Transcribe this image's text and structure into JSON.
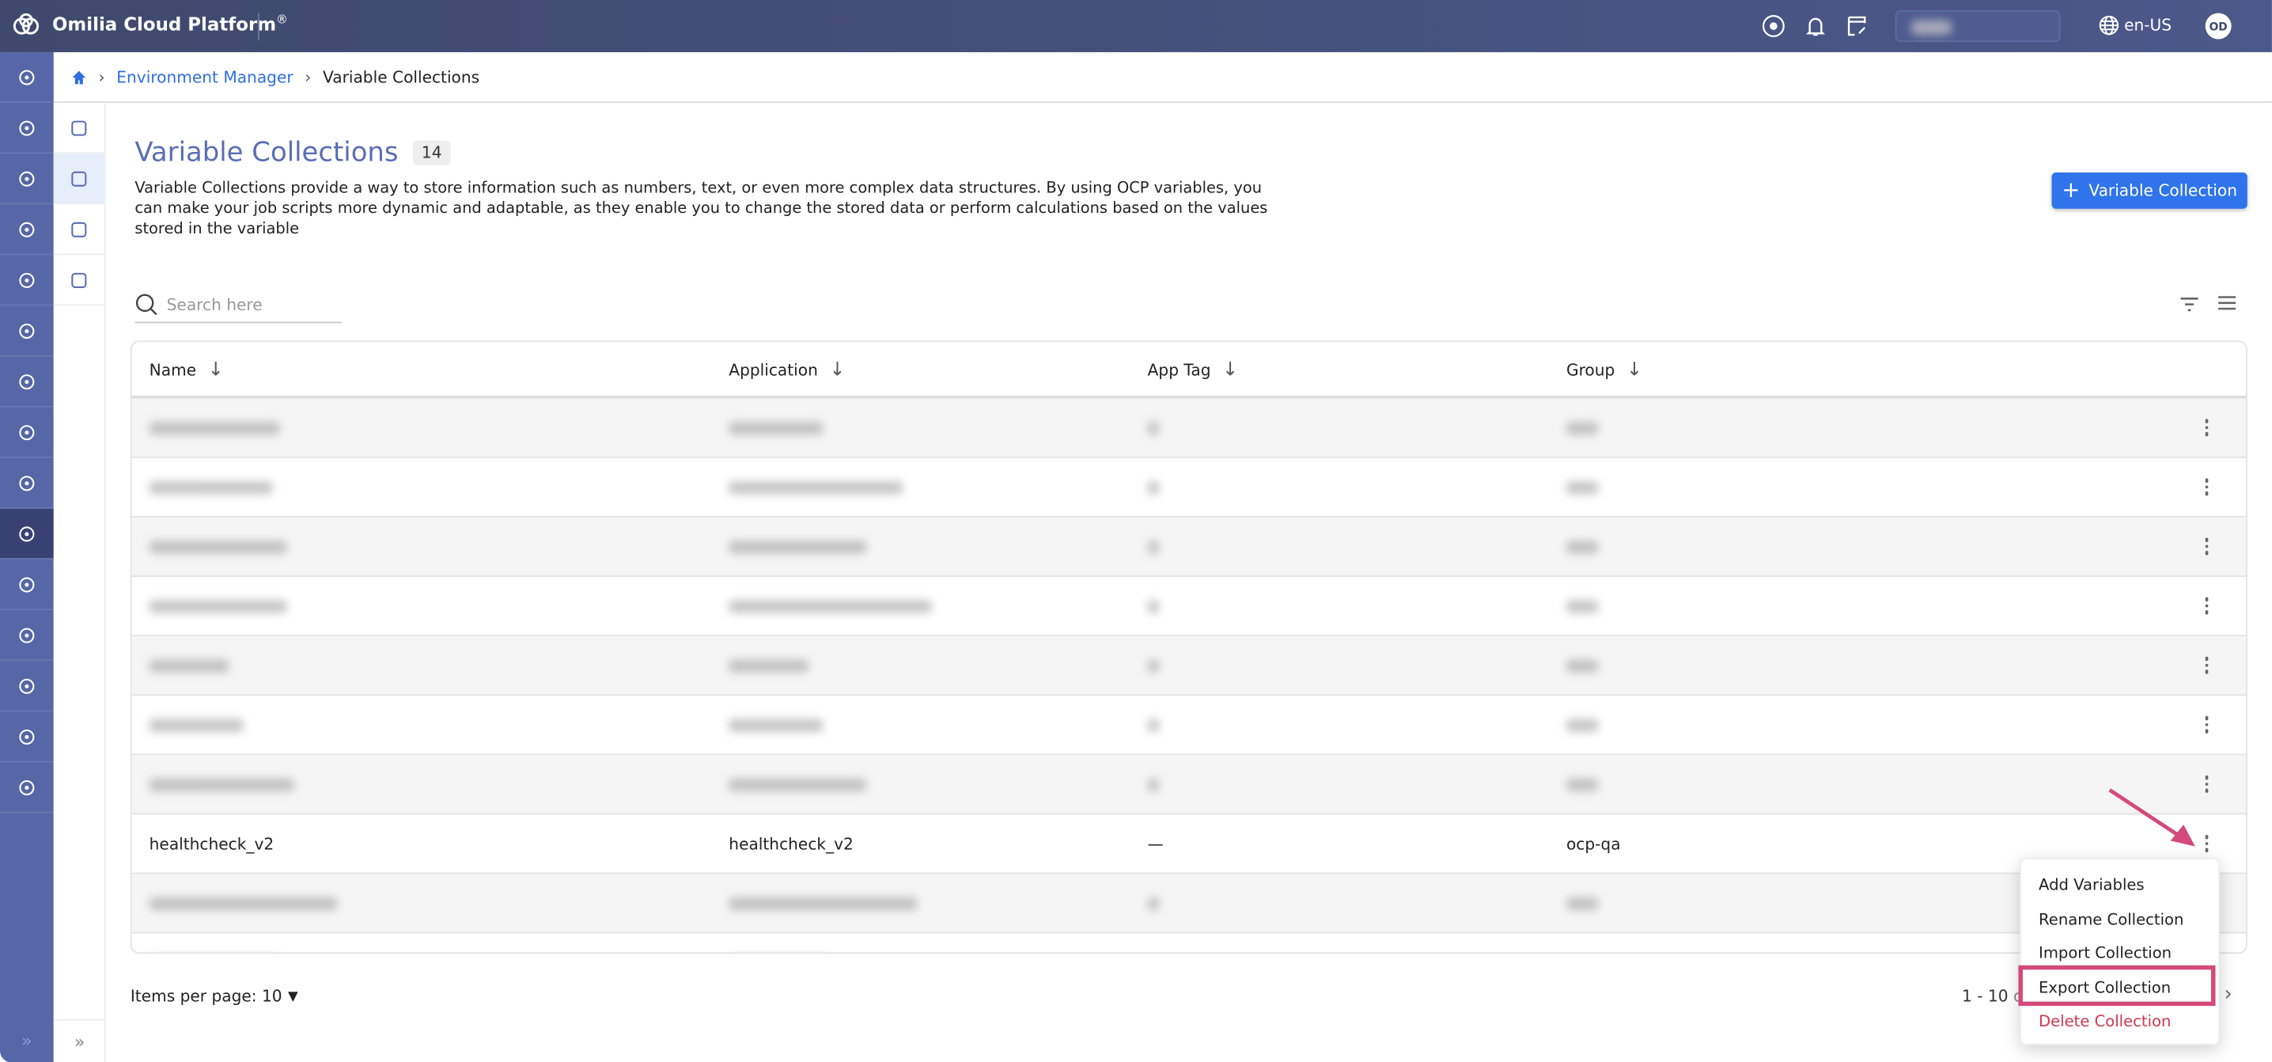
{
  "app": {
    "title": "Omilia Cloud Platform",
    "registered": "®",
    "language": "en-US",
    "user_initials": "OD"
  },
  "icons": {
    "top": [
      "theme-icon",
      "bell-icon",
      "release-notes-icon",
      "globe-icon"
    ],
    "nav": [
      "home-icon",
      "layers-icon",
      "phone-icon",
      "analytics-icon",
      "voice-icon",
      "agent-icon",
      "network-icon",
      "insights-icon",
      "ai-icon",
      "environment-cloud-icon",
      "users-settings-icon",
      "verified-icon",
      "integration-icon",
      "legal-scale-icon",
      "support-icon"
    ],
    "subnav": [
      "database-icon",
      "variables-icon",
      "table-icon",
      "deploy-icon"
    ]
  },
  "breadcrumb": {
    "parent": "Environment Manager",
    "current": "Variable Collections"
  },
  "page": {
    "title": "Variable Collections",
    "count": "14",
    "description": "Variable Collections provide a way to store information such as numbers, text, or even more complex data structures. By using OCP variables, you can make your job scripts more dynamic and adaptable, as they enable you to change the stored data or perform calculations based on the values stored in the variable",
    "add_button": "Variable Collection",
    "search_placeholder": "Search here"
  },
  "table": {
    "columns": [
      "Name",
      "Application",
      "App Tag",
      "Group"
    ],
    "visible_row": {
      "name": "healthcheck_v2",
      "application": "healthcheck_v2",
      "app_tag": "—",
      "group": "ocp-qa"
    }
  },
  "menu": {
    "items": [
      "Add Variables",
      "Rename Collection",
      "Import Collection",
      "Export Collection",
      "Delete Collection"
    ],
    "highlighted": "Export Collection"
  },
  "footer": {
    "items_per_page": "Items per page: 10",
    "range": "1 - 10",
    "of": "of"
  },
  "colors": {
    "accent": "#2f74eb",
    "nav": "#5567a6",
    "highlight": "#d44a7a",
    "danger": "#d0364f"
  }
}
